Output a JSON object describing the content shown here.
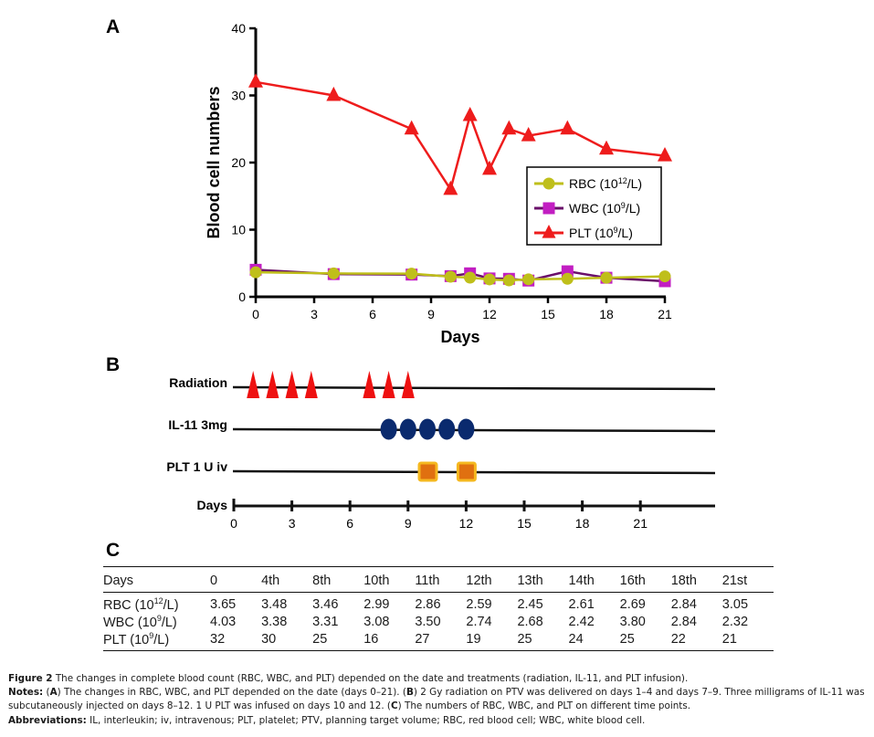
{
  "panels": {
    "a": "A",
    "b": "B",
    "c": "C"
  },
  "chart_data": [
    {
      "type": "line",
      "panel": "A",
      "title": "",
      "xlabel": "Days",
      "ylabel": "Blood cell numbers",
      "xlim": [
        0,
        21
      ],
      "ylim": [
        0,
        40
      ],
      "xticks": [
        0,
        3,
        6,
        9,
        12,
        15,
        18,
        21
      ],
      "yticks": [
        0,
        10,
        20,
        30,
        40
      ],
      "grid": false,
      "legend_position": "center-right",
      "x": [
        0,
        4,
        8,
        10,
        11,
        12,
        13,
        14,
        16,
        18,
        21
      ],
      "series": [
        {
          "name": "RBC",
          "unit_base": "10",
          "unit_exp": "12",
          "unit_suffix": "/L",
          "color": "#bfbf1a",
          "marker": "circle",
          "values": [
            3.65,
            3.48,
            3.46,
            2.99,
            2.86,
            2.59,
            2.45,
            2.61,
            2.69,
            2.84,
            3.05
          ]
        },
        {
          "name": "WBC",
          "unit_base": "10",
          "unit_exp": "9",
          "unit_suffix": "/L",
          "color": "#c21ec2",
          "line_color": "#6a0f6a",
          "marker": "square",
          "values": [
            4.03,
            3.38,
            3.31,
            3.08,
            3.5,
            2.74,
            2.68,
            2.42,
            3.8,
            2.84,
            2.32
          ]
        },
        {
          "name": "PLT",
          "unit_base": "10",
          "unit_exp": "9",
          "unit_suffix": "/L",
          "color": "#ee1c1c",
          "marker": "triangle",
          "values": [
            32,
            30,
            25,
            16,
            27,
            19,
            25,
            24,
            25,
            22,
            21
          ]
        }
      ]
    },
    {
      "type": "timeline",
      "panel": "B",
      "xlabel": "Days",
      "xticks": [
        0,
        3,
        6,
        9,
        12,
        15,
        18,
        21
      ],
      "rows": [
        {
          "label": "Radiation",
          "marker": "triangle",
          "color": "#ee1111",
          "days": [
            1,
            2,
            3,
            4,
            7,
            8,
            9
          ]
        },
        {
          "label": "IL-11 3mg",
          "marker": "ellipse",
          "color": "#0a2a6e",
          "days": [
            8,
            9,
            10,
            11,
            12
          ]
        },
        {
          "label": "PLT 1 U iv",
          "marker": "square",
          "color": "#e07010",
          "border_color": "#f5b820",
          "days": [
            10,
            12
          ]
        }
      ]
    },
    {
      "type": "table",
      "panel": "C",
      "header_label": "Days",
      "columns": [
        "0",
        "4th",
        "8th",
        "10th",
        "11th",
        "12th",
        "13th",
        "14th",
        "16th",
        "18th",
        "21st"
      ],
      "rows": [
        {
          "label": "RBC (10",
          "exp": "12",
          "suffix": "/L)",
          "values": [
            "3.65",
            "3.48",
            "3.46",
            "2.99",
            "2.86",
            "2.59",
            "2.45",
            "2.61",
            "2.69",
            "2.84",
            "3.05"
          ]
        },
        {
          "label": "WBC (10",
          "exp": "9",
          "suffix": "/L)",
          "values": [
            "4.03",
            "3.38",
            "3.31",
            "3.08",
            "3.50",
            "2.74",
            "2.68",
            "2.42",
            "3.80",
            "2.84",
            "2.32"
          ]
        },
        {
          "label": "PLT (10",
          "exp": "9",
          "suffix": "/L)",
          "values": [
            "32",
            "30",
            "25",
            "16",
            "27",
            "19",
            "25",
            "24",
            "25",
            "22",
            "21"
          ]
        }
      ]
    }
  ],
  "caption": {
    "figure_label": "Figure 2",
    "figure_text": " The changes in complete blood count (RBC, WBC, and PLT) depended on the date and treatments (radiation, IL-11, and PLT infusion).",
    "notes_label": "Notes:",
    "notes_a_open": " (",
    "notes_a": "A",
    "notes_a_text": ") The changes in RBC, WBC, and PLT depended on the date (days 0–21). (",
    "notes_b": "B",
    "notes_b_text": ") 2 Gy radiation on PTV was delivered on days 1–4 and days 7–9. Three milligrams of IL-11 was subcutaneously injected on days 8–12. 1 U PLT was infused on days 10 and 12. (",
    "notes_c": "C",
    "notes_c_text": ") The numbers of RBC, WBC, and PLT on different time points.",
    "abbrev_label": "Abbreviations:",
    "abbrev_text": " IL, interleukin; iv, intravenous; PLT, platelet; PTV, planning target volume; RBC, red blood cell; WBC, white blood cell."
  }
}
